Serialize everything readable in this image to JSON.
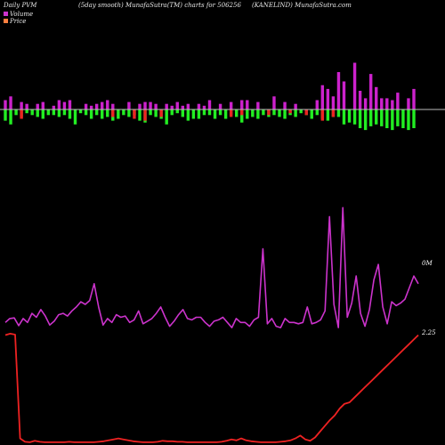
{
  "header": {
    "left": "Daily PVM",
    "smooth": "(5day smooth) MunafaSutra(TM) charts for 506256",
    "right": "(KANELIND) MunafaSutra.com"
  },
  "legend": {
    "volume_label": "Volume",
    "price_label": "Price",
    "volume_color": "#cc33cc",
    "price_color": "#ff8040"
  },
  "colors": {
    "background": "#000000",
    "volume_up": "#cc22cc",
    "volume_down": "#22ee22",
    "volume_red": "#ee2222",
    "volume_line": "#cc33cc",
    "price_line": "#ee2222",
    "baseline": "#bbbbbb"
  },
  "chart_data": [
    {
      "type": "bar",
      "name": "volume-bars",
      "categories": [
        1,
        2,
        3,
        4,
        5,
        6,
        7,
        8,
        9,
        10,
        11,
        12,
        13,
        14,
        15,
        16,
        17,
        18,
        19,
        20,
        21,
        22,
        23,
        24,
        25,
        26,
        27,
        28,
        29,
        30,
        31,
        32,
        33,
        34,
        35,
        36,
        37,
        38,
        39,
        40,
        41,
        42,
        43,
        44,
        45,
        46,
        47,
        48,
        49,
        50,
        51,
        52,
        53,
        54,
        55,
        56,
        57,
        58,
        59,
        60,
        61,
        62,
        63,
        64,
        65,
        66,
        67,
        68,
        69,
        70,
        71,
        72,
        73,
        74,
        75,
        76,
        77
      ],
      "up": [
        5,
        7,
        0,
        4,
        3,
        0,
        3,
        4,
        0,
        2,
        5,
        4,
        5,
        0,
        0,
        3,
        2,
        3,
        4,
        5,
        3,
        0,
        0,
        4,
        0,
        3,
        4,
        4,
        3,
        0,
        3,
        2,
        4,
        2,
        3,
        0,
        3,
        2,
        5,
        0,
        3,
        0,
        4,
        0,
        5,
        5,
        0,
        4,
        0,
        0,
        7,
        0,
        4,
        0,
        3,
        0,
        0,
        0,
        5,
        13,
        11,
        7,
        20,
        15,
        0,
        25,
        10,
        6,
        19,
        12,
        6,
        6,
        5,
        9,
        0,
        6,
        11
      ],
      "down": [
        -6,
        -8,
        -3,
        -4,
        -2,
        -3,
        -4,
        -5,
        -3,
        -3,
        -4,
        -3,
        -5,
        -8,
        -2,
        -3,
        -5,
        -3,
        -5,
        -4,
        -6,
        -5,
        -3,
        -4,
        -3,
        -6,
        -7,
        -3,
        -4,
        -5,
        -8,
        -3,
        -2,
        -4,
        -6,
        -5,
        -5,
        -3,
        -3,
        -5,
        -3,
        -5,
        -3,
        -4,
        -7,
        -5,
        -4,
        -5,
        -3,
        -4,
        -3,
        -4,
        -5,
        -3,
        -4,
        -2,
        -3,
        -5,
        -3,
        -5,
        -6,
        -4,
        -4,
        -8,
        -7,
        -8,
        -10,
        -11,
        -9,
        -8,
        -9,
        -10,
        -11,
        -9,
        -10,
        -11,
        -10
      ],
      "red": [
        0,
        0,
        0,
        -5,
        0,
        0,
        0,
        0,
        0,
        0,
        0,
        0,
        0,
        0,
        0,
        0,
        0,
        0,
        0,
        0,
        -4,
        0,
        0,
        0,
        -5,
        0,
        -6,
        0,
        0,
        -4,
        0,
        0,
        0,
        0,
        0,
        0,
        0,
        0,
        0,
        0,
        0,
        0,
        -4,
        0,
        -3,
        0,
        0,
        0,
        0,
        -3,
        0,
        0,
        0,
        -2,
        0,
        0,
        -3,
        0,
        0,
        -6,
        0,
        -4,
        0,
        0,
        0,
        0,
        0,
        0,
        0,
        0,
        0,
        0,
        0,
        0,
        0,
        0,
        0
      ]
    },
    {
      "type": "line",
      "name": "volume",
      "series_label": "0M",
      "values": [
        0.6,
        0.9,
        0.95,
        0.35,
        0.9,
        0.6,
        1.3,
        1.0,
        1.6,
        1.1,
        0.4,
        0.7,
        1.2,
        1.3,
        1.1,
        1.5,
        1.8,
        2.2,
        2.0,
        2.3,
        3.6,
        1.8,
        0.4,
        0.9,
        0.6,
        1.2,
        1.0,
        1.1,
        0.6,
        0.8,
        1.5,
        0.5,
        0.7,
        0.9,
        1.3,
        1.8,
        1.0,
        0.3,
        0.7,
        1.2,
        1.6,
        0.9,
        0.8,
        1.0,
        1.0,
        0.6,
        0.3,
        0.7,
        0.8,
        1.0,
        0.6,
        0.2,
        0.9,
        0.6,
        0.6,
        0.3,
        0.8,
        1.0,
        6.3,
        0.5,
        0.9,
        0.3,
        0.2,
        0.9,
        0.6,
        0.6,
        0.5,
        0.6,
        1.8,
        0.5,
        0.6,
        0.8,
        1.5,
        8.8,
        2.0,
        0.2,
        9.5,
        1.0,
        2.1,
        4.2,
        1.3,
        0.3,
        1.6,
        3.9,
        5.1,
        1.8,
        0.5,
        2.2,
        1.9,
        2.1,
        2.4,
        3.3,
        4.2,
        3.6
      ]
    },
    {
      "type": "line",
      "name": "price",
      "series_label": "2.25",
      "values": [
        2.25,
        2.28,
        2.26,
        0.1,
        0.03,
        0.02,
        0.05,
        0.03,
        0.02,
        0.02,
        0.02,
        0.02,
        0.02,
        0.03,
        0.02,
        0.02,
        0.02,
        0.02,
        0.02,
        0.03,
        0.04,
        0.06,
        0.08,
        0.1,
        0.08,
        0.06,
        0.04,
        0.03,
        0.02,
        0.02,
        0.02,
        0.03,
        0.05,
        0.04,
        0.04,
        0.03,
        0.03,
        0.02,
        0.02,
        0.02,
        0.02,
        0.02,
        0.02,
        0.02,
        0.03,
        0.05,
        0.08,
        0.06,
        0.1,
        0.06,
        0.04,
        0.03,
        0.02,
        0.02,
        0.02,
        0.02,
        0.03,
        0.04,
        0.06,
        0.1,
        0.16,
        0.08,
        0.05,
        0.12,
        0.24,
        0.36,
        0.48,
        0.58,
        0.72,
        0.82,
        0.85,
        0.95,
        1.05,
        1.15,
        1.25,
        1.35,
        1.45,
        1.55,
        1.65,
        1.75,
        1.85,
        1.95,
        2.05,
        2.15,
        2.25
      ]
    }
  ]
}
